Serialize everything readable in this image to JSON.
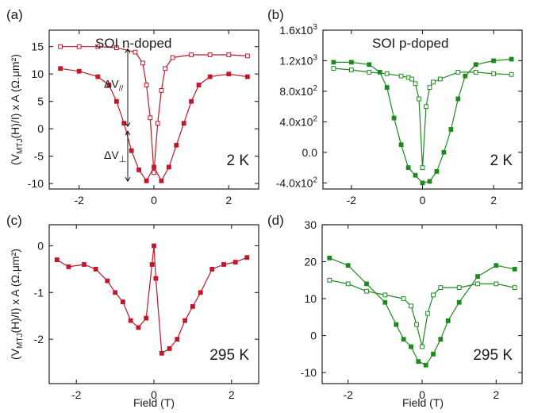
{
  "figure": {
    "ylabel_html": [
      "(V",
      "MTJ",
      "(H)/I) x A (Ω.μm²)"
    ],
    "xlabel": "Field (T)"
  },
  "chart_data": [
    {
      "panel": "(a)",
      "type": "line",
      "title": "SOI n-doped",
      "temperature": "2 K",
      "xlim": [
        -2.8,
        2.8
      ],
      "ylim": [
        -11,
        18
      ],
      "xticks": [
        -2,
        0,
        2
      ],
      "xtick_labels": [
        "-2",
        "0",
        "2"
      ],
      "yticks": [
        -10,
        -5,
        0,
        5,
        10,
        15
      ],
      "ytick_labels": [
        "-10",
        "-5",
        "0",
        "5",
        "10",
        "15"
      ],
      "grid": false,
      "color": "#c0182a",
      "annotations": {
        "dv_par": "ΔV//",
        "dv_perp": "ΔV⊥"
      },
      "series": [
        {
          "marker": "open",
          "x": [
            -2.5,
            -2.0,
            -1.5,
            -1.0,
            -0.5,
            -0.3,
            -0.2,
            -0.1,
            0.0,
            0.1,
            0.2,
            0.3,
            0.5,
            1.0,
            1.5,
            2.0,
            2.5
          ],
          "y": [
            15,
            15,
            15,
            14.8,
            14,
            12,
            8,
            2,
            -8,
            1,
            7,
            11,
            13,
            13.5,
            13.5,
            13.5,
            13.3
          ]
        },
        {
          "marker": "filled",
          "x": [
            -2.5,
            -2.0,
            -1.5,
            -1.2,
            -1.0,
            -0.8,
            -0.6,
            -0.4,
            -0.2,
            0.0,
            0.2,
            0.4,
            0.6,
            0.8,
            1.0,
            1.2,
            1.5,
            2.0,
            2.5
          ],
          "y": [
            11,
            10.5,
            9.5,
            8,
            5,
            1,
            -4,
            -7.5,
            -9.5,
            -7,
            -9.5,
            -7,
            -3,
            1,
            5,
            8,
            9.5,
            10,
            9.5
          ]
        }
      ]
    },
    {
      "panel": "(b)",
      "type": "line",
      "title": "SOI p-doped",
      "temperature": "2 K",
      "xlim": [
        -2.8,
        2.8
      ],
      "ylim": [
        -480,
        1600
      ],
      "xticks": [
        -2,
        0,
        2
      ],
      "xtick_labels": [
        "-2",
        "0",
        "2"
      ],
      "yticks": [
        -400,
        0,
        400,
        800,
        1200,
        1600
      ],
      "ytick_labels": [
        "-4.0x10²",
        "0.0",
        "4.0x10²",
        "8.0x10²",
        "1.2x10³",
        "1.6x10³"
      ],
      "grid": false,
      "color": "#1e8a1e",
      "series": [
        {
          "marker": "open",
          "x": [
            -2.5,
            -2.0,
            -1.5,
            -1.0,
            -0.6,
            -0.4,
            -0.3,
            -0.2,
            -0.1,
            0.0,
            0.1,
            0.2,
            0.3,
            0.5,
            1.0,
            1.5,
            2.0,
            2.5
          ],
          "y": [
            1100,
            1080,
            1050,
            1030,
            1000,
            980,
            960,
            900,
            700,
            -200,
            600,
            850,
            920,
            960,
            1050,
            1050,
            1030,
            1020
          ]
        },
        {
          "marker": "filled",
          "x": [
            -2.5,
            -2.0,
            -1.5,
            -1.2,
            -1.0,
            -0.8,
            -0.6,
            -0.4,
            -0.2,
            0.0,
            0.2,
            0.4,
            0.6,
            0.8,
            1.0,
            1.2,
            1.5,
            2.0,
            2.5
          ],
          "y": [
            1180,
            1180,
            1150,
            1050,
            850,
            450,
            100,
            -200,
            -300,
            -400,
            -380,
            -250,
            0,
            300,
            700,
            1000,
            1150,
            1200,
            1220
          ]
        }
      ]
    },
    {
      "panel": "(c)",
      "type": "line",
      "temperature": "295 K",
      "xlim": [
        -2.7,
        2.7
      ],
      "ylim": [
        -2.95,
        0.45
      ],
      "xticks": [
        -2,
        0,
        2
      ],
      "xtick_labels": [
        "-2",
        "0",
        "2"
      ],
      "yticks": [
        -2,
        -1,
        0
      ],
      "ytick_labels": [
        "-2",
        "-1",
        "0"
      ],
      "grid": false,
      "color": "#c0182a",
      "series": [
        {
          "marker": "filled",
          "x": [
            -2.5,
            -2.2,
            -1.8,
            -1.5,
            -1.2,
            -1.0,
            -0.8,
            -0.6,
            -0.4,
            -0.2,
            -0.05,
            0.0,
            0.05,
            0.2,
            0.4,
            0.6,
            0.8,
            1.0,
            1.2,
            1.5,
            1.8,
            2.1,
            2.4
          ],
          "y": [
            -0.3,
            -0.45,
            -0.4,
            -0.5,
            -0.75,
            -1.0,
            -1.2,
            -1.6,
            -1.75,
            -1.55,
            -0.4,
            0.0,
            -0.7,
            -2.3,
            -2.2,
            -2.0,
            -1.6,
            -1.3,
            -1.0,
            -0.5,
            -0.4,
            -0.35,
            -0.25
          ]
        }
      ]
    },
    {
      "panel": "(d)",
      "type": "line",
      "temperature": "295 K",
      "xlim": [
        -2.7,
        2.7
      ],
      "ylim": [
        -13,
        30
      ],
      "xticks": [
        -2,
        0,
        2
      ],
      "xtick_labels": [
        "-2",
        "0",
        "2"
      ],
      "yticks": [
        -10,
        0,
        10,
        20,
        30
      ],
      "ytick_labels": [
        "-10",
        "0",
        "10",
        "20",
        "30"
      ],
      "grid": false,
      "color": "#1e8a1e",
      "series": [
        {
          "marker": "open",
          "x": [
            -2.5,
            -2.0,
            -1.5,
            -1.0,
            -0.5,
            -0.3,
            -0.15,
            0.0,
            0.15,
            0.3,
            0.5,
            1.0,
            1.5,
            2.0,
            2.5
          ],
          "y": [
            15,
            14,
            12,
            11,
            10,
            8,
            3,
            -3,
            6,
            11,
            13,
            13,
            14,
            14,
            13
          ]
        },
        {
          "marker": "filled",
          "x": [
            -2.5,
            -2.0,
            -1.5,
            -1.0,
            -0.7,
            -0.5,
            -0.3,
            -0.1,
            0.1,
            0.3,
            0.5,
            0.7,
            1.0,
            1.5,
            2.0,
            2.5
          ],
          "y": [
            21,
            19,
            14,
            9,
            3,
            -1,
            -3,
            -7,
            -8,
            -5,
            -1,
            4,
            9,
            16,
            19,
            18
          ]
        }
      ]
    }
  ]
}
